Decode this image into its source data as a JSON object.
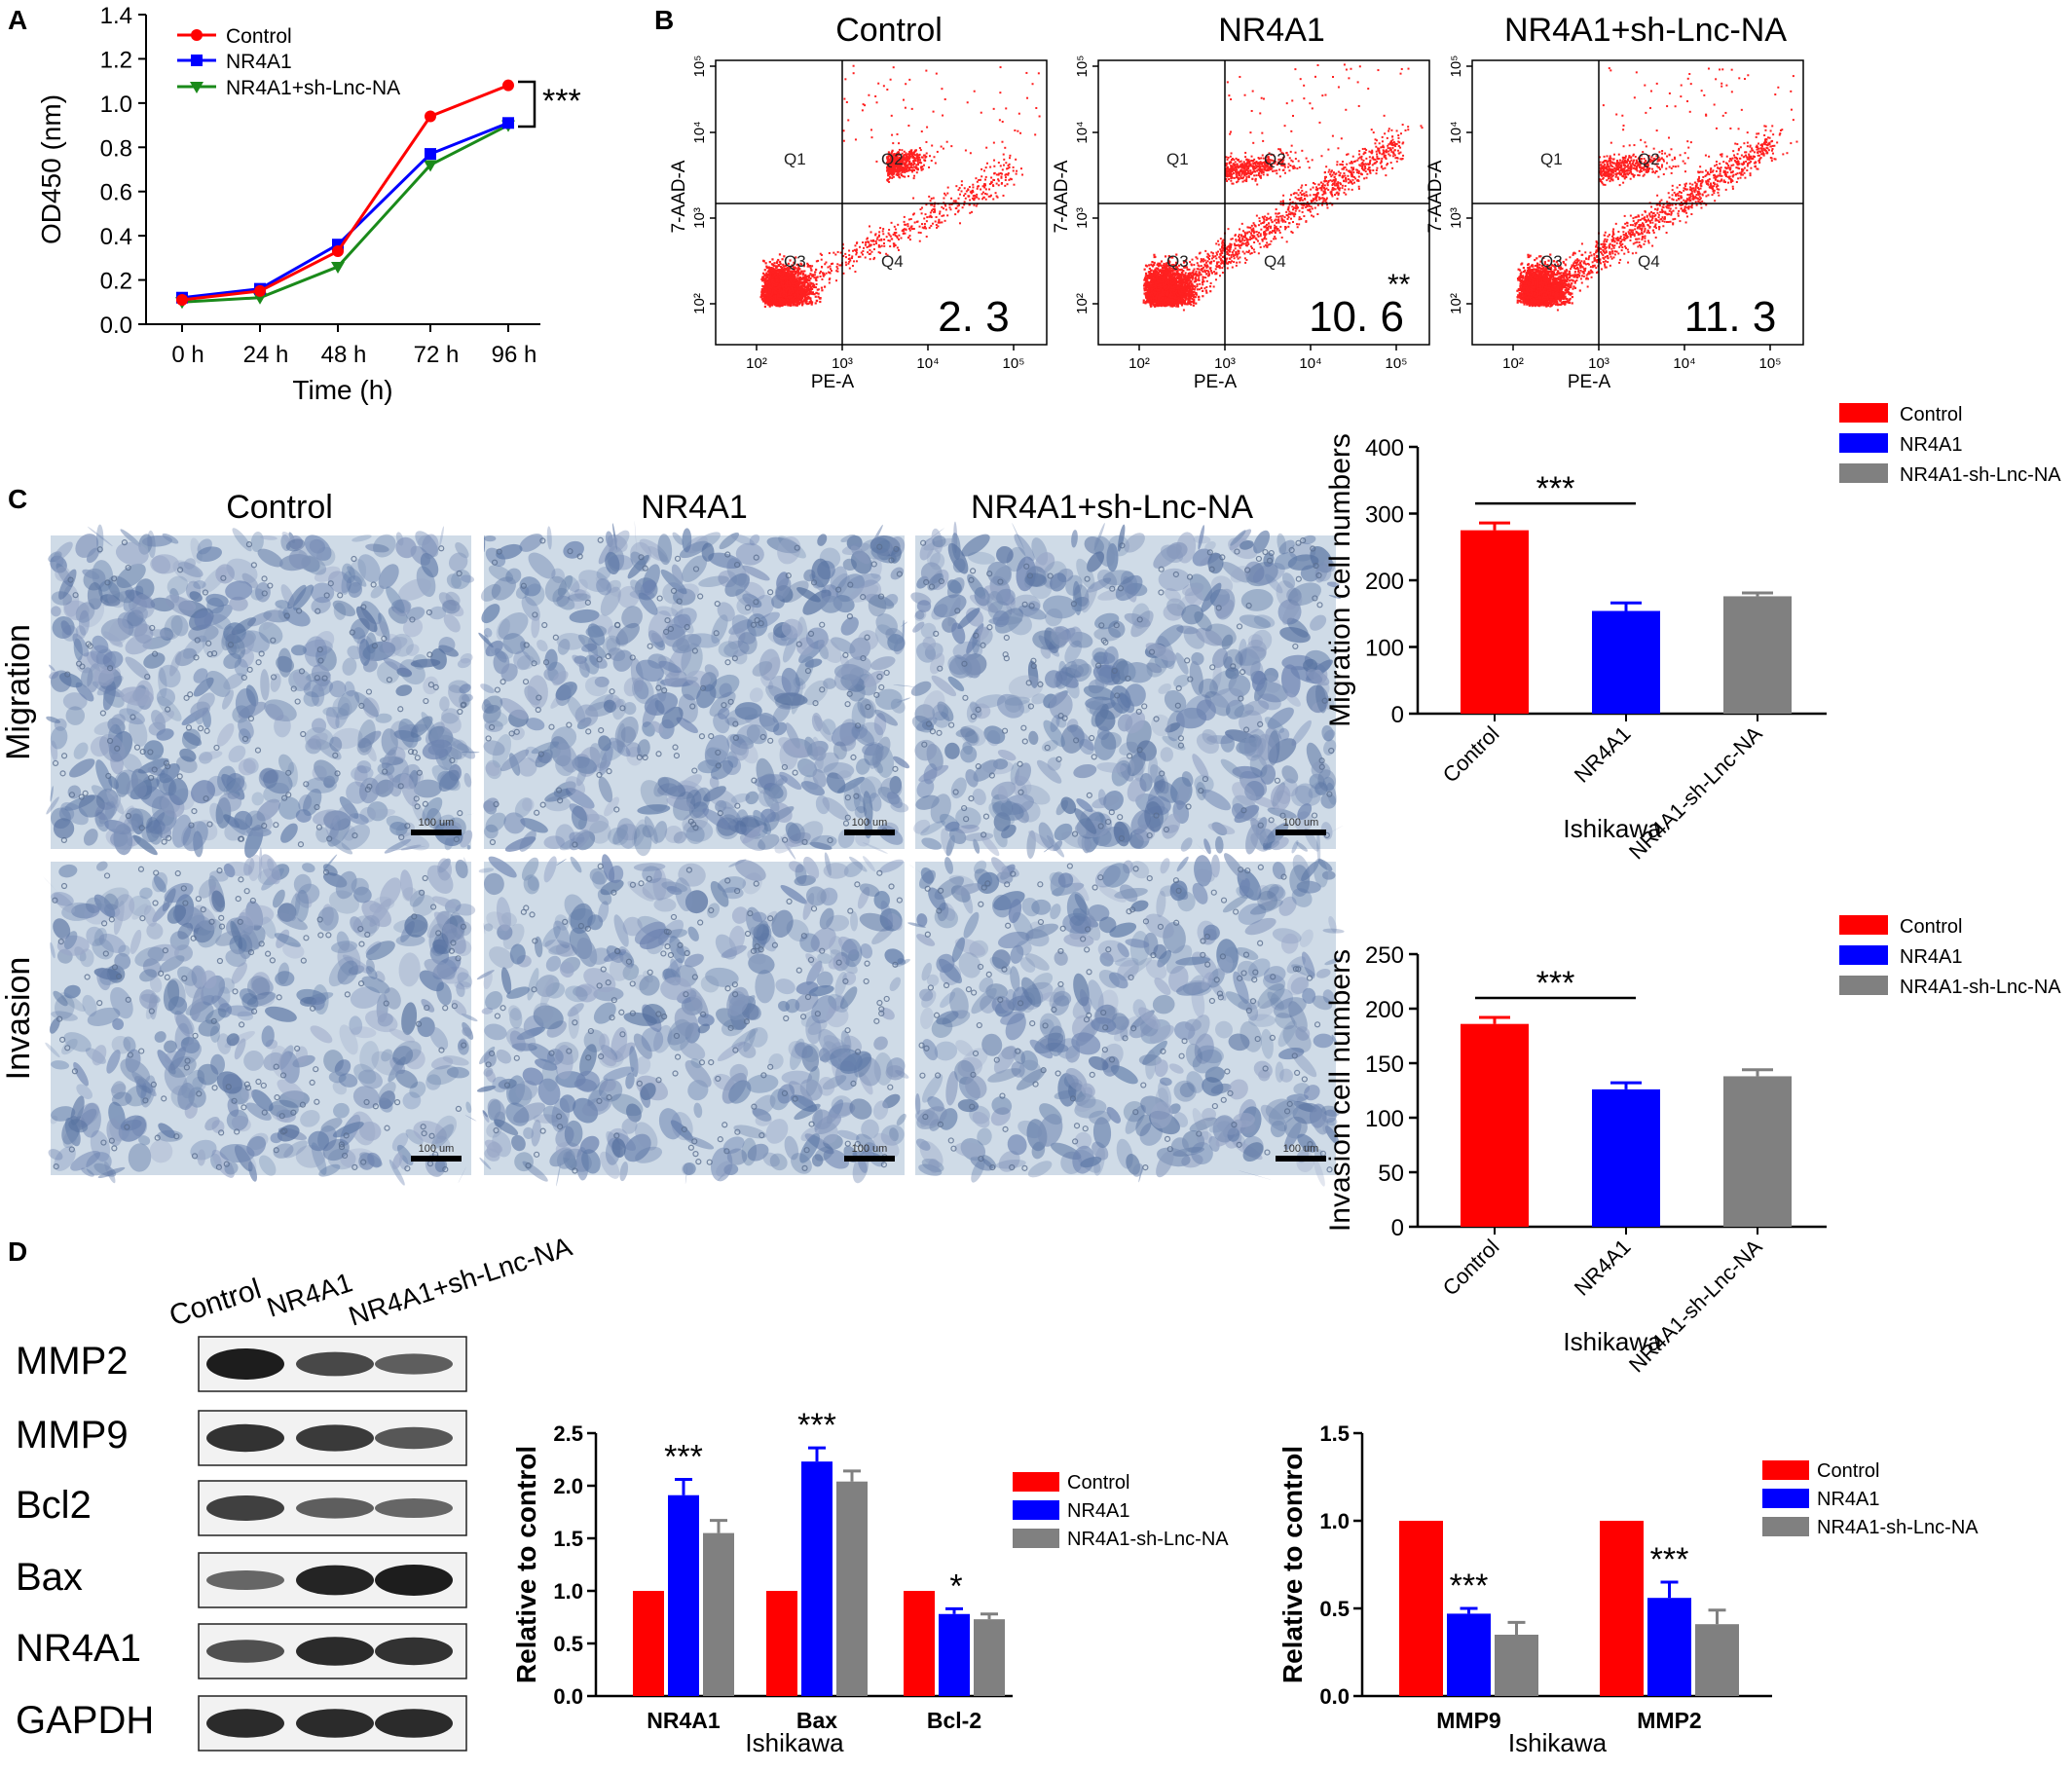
{
  "panel_labels": [
    "A",
    "B",
    "C",
    "D"
  ],
  "colors": {
    "control": "#ff0000",
    "nr4a1": "#0000ff",
    "sh": "#808080",
    "line_sh": "#1a8a1a",
    "flow_dots": "#ff2020",
    "stain_bg": "#cfdbe7",
    "stain_cell": "#6f88b0",
    "blot_band": "#111111"
  },
  "chart_data": [
    {
      "id": "A",
      "type": "line",
      "x": [
        "0 h",
        "24 h",
        "48 h",
        "72 h",
        "96 h"
      ],
      "series": [
        {
          "name": "Control",
          "values": [
            0.11,
            0.15,
            0.33,
            0.94,
            1.08
          ],
          "marker": "circle"
        },
        {
          "name": "NR4A1",
          "values": [
            0.12,
            0.16,
            0.36,
            0.77,
            0.91
          ],
          "marker": "square"
        },
        {
          "name": "NR4A1+sh-Lnc-NA",
          "values": [
            0.1,
            0.12,
            0.26,
            0.72,
            0.9
          ],
          "marker": "triangle-down"
        }
      ],
      "xlabel": "Time (h)",
      "ylabel": "OD450 (nm)",
      "ylim": [
        0,
        1.4
      ],
      "yticks": [
        "0.0",
        "0.2",
        "0.4",
        "0.6",
        "0.8",
        "1.0",
        "1.2",
        "1.4"
      ],
      "annotation": "***",
      "legend": "top-left"
    },
    {
      "id": "B",
      "type": "scatter",
      "panels": [
        {
          "title": "Control",
          "q4_value": "2. 3",
          "sig": ""
        },
        {
          "title": "NR4A1",
          "q4_value": "10. 6",
          "sig": "**"
        },
        {
          "title": "NR4A1+sh-Lnc-NA",
          "q4_value": "11. 3",
          "sig": ""
        }
      ],
      "xlabel": "PE-A",
      "ylabel": "7-AAD-A",
      "x_ticks": [
        "10²",
        "10³",
        "10⁴",
        "10⁵"
      ],
      "y_ticks": [
        "10²",
        "10³",
        "10⁴",
        "10⁵"
      ],
      "quadrants": [
        "Q1",
        "Q2",
        "Q3",
        "Q4"
      ]
    },
    {
      "id": "C-migration",
      "type": "bar",
      "categories": [
        "Control",
        "NR4A1",
        "NR4A1-sh-Lnc-NA"
      ],
      "values": [
        275,
        154,
        176
      ],
      "errors": [
        11,
        12,
        5
      ],
      "xlabel": "Ishikawa",
      "ylabel": "Migration cell numbers",
      "ylim": [
        0,
        400
      ],
      "yticks": [
        "0",
        "100",
        "200",
        "300",
        "400"
      ],
      "annotation": "***",
      "legend": "top-right"
    },
    {
      "id": "C-invasion",
      "type": "bar",
      "categories": [
        "Control",
        "NR4A1",
        "NR4A1-sh-Lnc-NA"
      ],
      "values": [
        186,
        126,
        138
      ],
      "errors": [
        6,
        6,
        6
      ],
      "xlabel": "Ishikawa",
      "ylabel": "Invasion cell numbers",
      "ylim": [
        0,
        250
      ],
      "yticks": [
        "0",
        "50",
        "100",
        "150",
        "200",
        "250"
      ],
      "annotation": "***",
      "legend": "top-right"
    },
    {
      "id": "D-left",
      "type": "bar",
      "categories": [
        "NR4A1",
        "Bax",
        "Bcl-2"
      ],
      "series": [
        {
          "name": "Control",
          "values": [
            1.0,
            1.0,
            1.0
          ],
          "errors": [
            0,
            0,
            0
          ]
        },
        {
          "name": "NR4A1",
          "values": [
            1.91,
            2.23,
            0.78
          ],
          "errors": [
            0.15,
            0.13,
            0.05
          ]
        },
        {
          "name": "NR4A1-sh-Lnc-NA",
          "values": [
            1.55,
            2.04,
            0.73
          ],
          "errors": [
            0.12,
            0.1,
            0.05
          ]
        }
      ],
      "annotations": [
        "***",
        "***",
        "*"
      ],
      "xlabel": "Ishikawa",
      "ylabel": "Relative to control",
      "ylim": [
        0,
        2.5
      ],
      "yticks": [
        "0.0",
        "0.5",
        "1.0",
        "1.5",
        "2.0",
        "2.5"
      ],
      "legend": "right"
    },
    {
      "id": "D-right",
      "type": "bar",
      "categories": [
        "MMP9",
        "MMP2"
      ],
      "series": [
        {
          "name": "Control",
          "values": [
            1.0,
            1.0
          ],
          "errors": [
            0,
            0
          ]
        },
        {
          "name": "NR4A1",
          "values": [
            0.47,
            0.56
          ],
          "errors": [
            0.03,
            0.09
          ]
        },
        {
          "name": "NR4A1-sh-Lnc-NA",
          "values": [
            0.35,
            0.41
          ],
          "errors": [
            0.07,
            0.08
          ]
        }
      ],
      "annotations": [
        "***",
        "***"
      ],
      "xlabel": "Ishikawa",
      "ylabel": "Relative to control",
      "ylim": [
        0,
        1.5
      ],
      "yticks": [
        "0.0",
        "0.5",
        "1.0",
        "1.5"
      ],
      "legend": "top-right"
    }
  ],
  "panel_c": {
    "columns": [
      "Control",
      "NR4A1",
      "NR4A1+sh-Lnc-NA"
    ],
    "rows": [
      "Migration",
      "Invasion"
    ],
    "scale_bar": "100 um"
  },
  "panel_d_blot": {
    "lanes": [
      "Control",
      "NR4A1",
      "NR4A1+sh-Lnc-NA"
    ],
    "bands": [
      {
        "name": "MMP2",
        "intensity": [
          1.0,
          0.7,
          0.55
        ]
      },
      {
        "name": "MMP9",
        "intensity": [
          0.85,
          0.8,
          0.6
        ]
      },
      {
        "name": "Bcl2",
        "intensity": [
          0.75,
          0.55,
          0.5
        ]
      },
      {
        "name": "Bax",
        "intensity": [
          0.5,
          0.95,
          1.0
        ]
      },
      {
        "name": "NR4A1",
        "intensity": [
          0.65,
          0.9,
          0.85
        ]
      },
      {
        "name": "GAPDH",
        "intensity": [
          0.9,
          0.9,
          0.9
        ]
      }
    ]
  }
}
